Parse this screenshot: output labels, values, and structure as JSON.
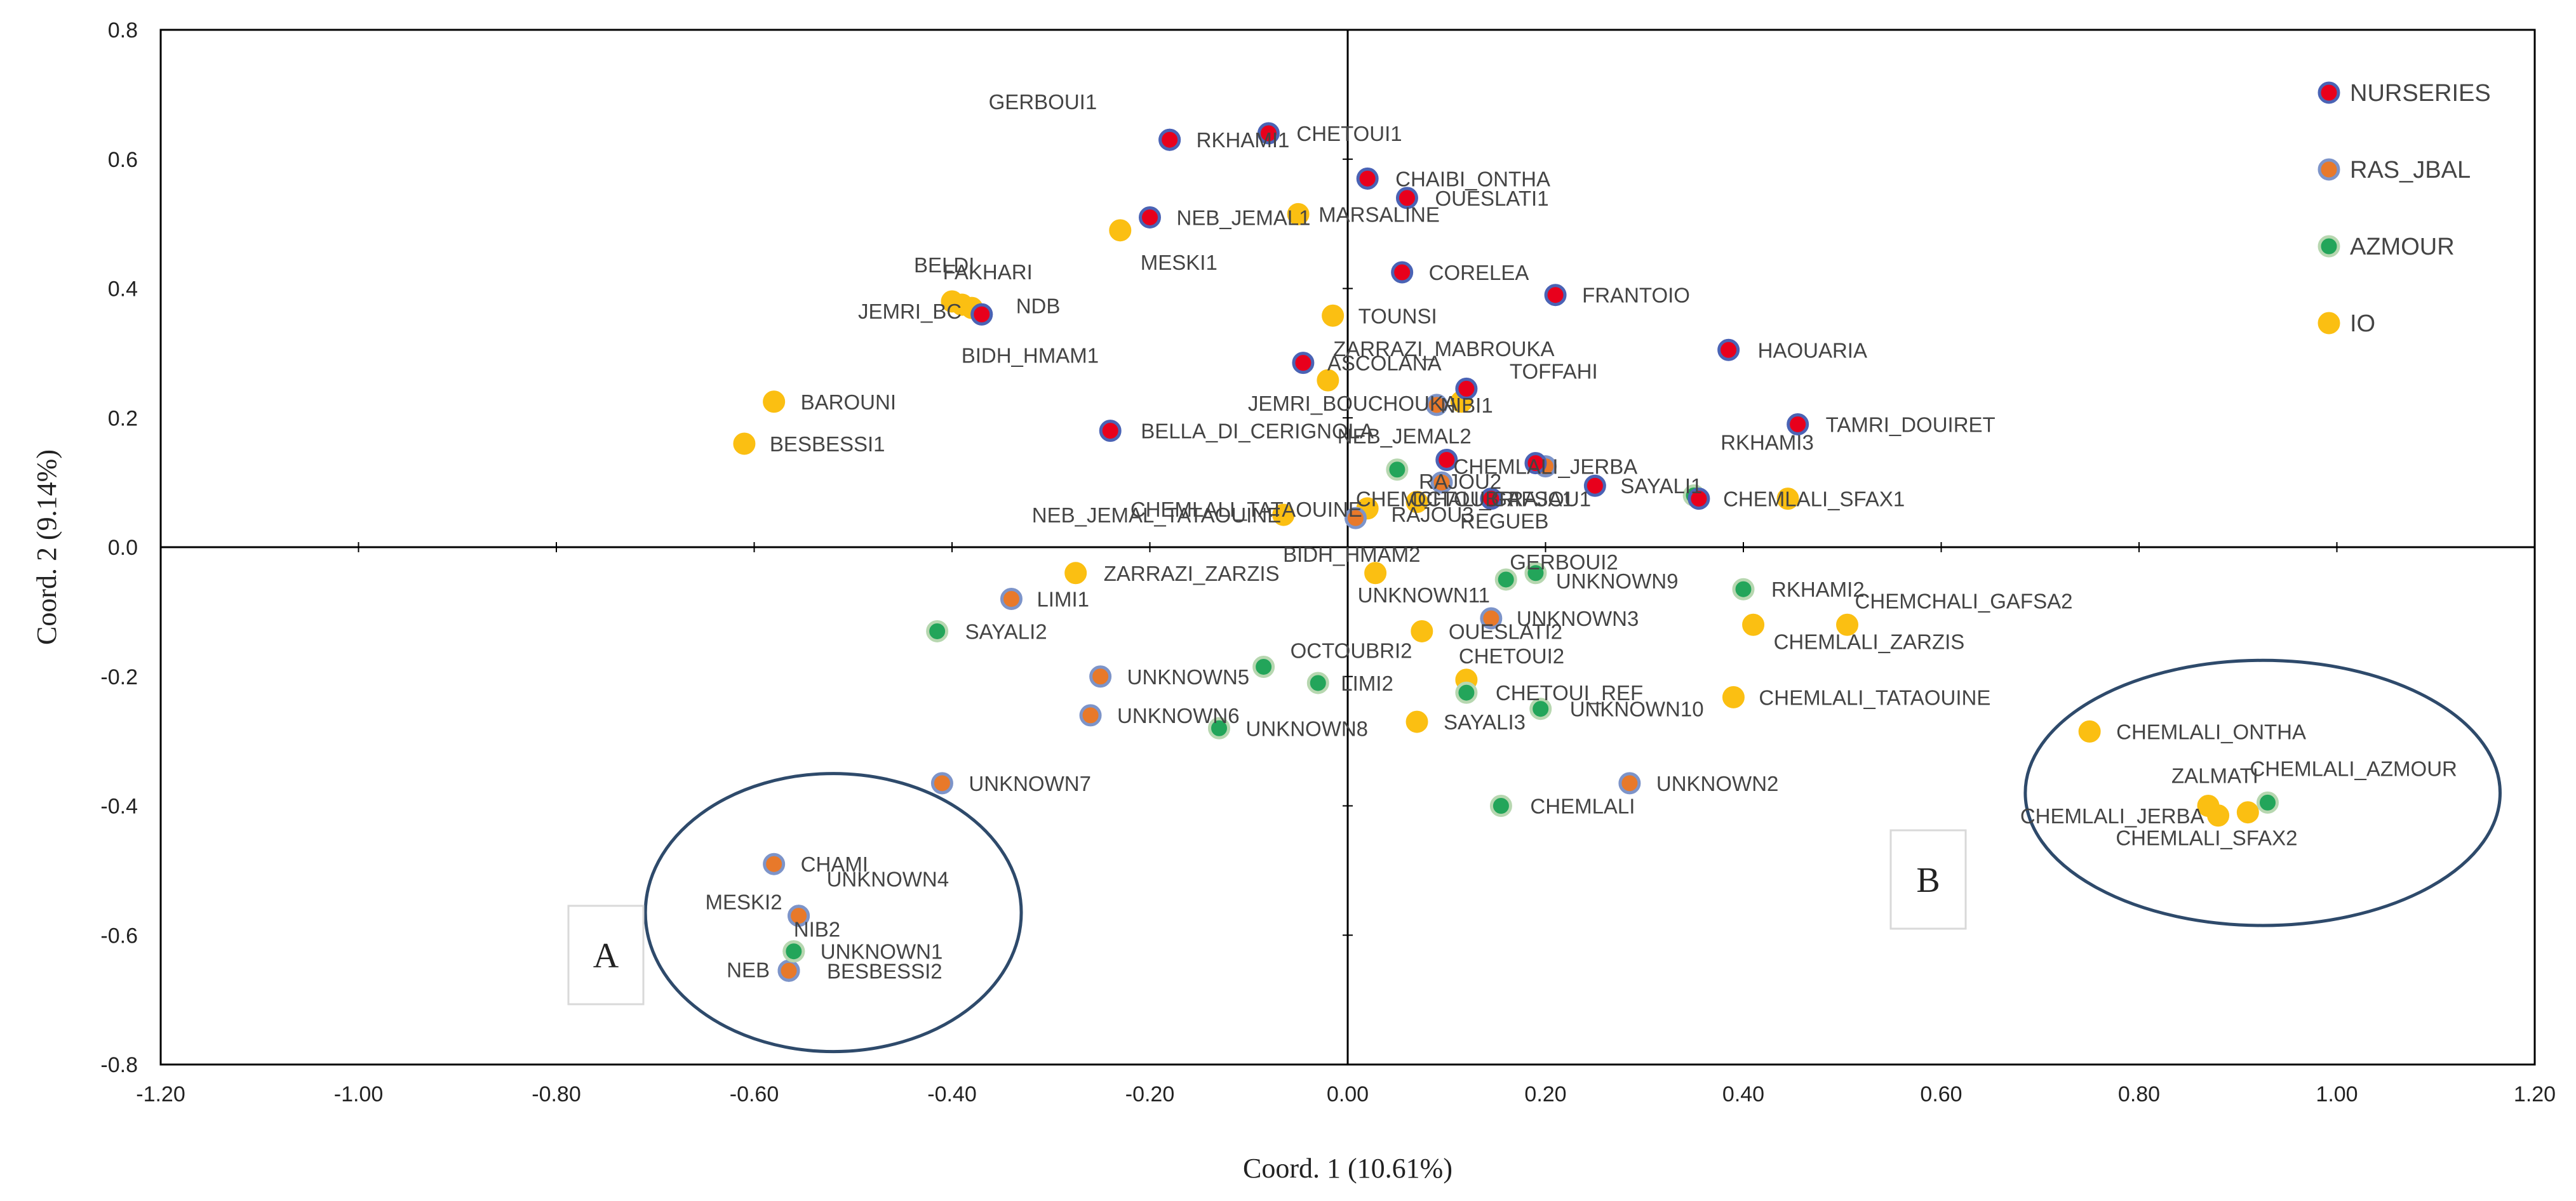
{
  "chart_data": {
    "type": "scatter",
    "xlabel": "Coord. 1 (10.61%)",
    "ylabel": "Coord. 2 (9.14%)",
    "xlim": [
      -1.2,
      1.2
    ],
    "ylim": [
      -0.8,
      0.8
    ],
    "xticks": [
      -1.2,
      -1.0,
      -0.8,
      -0.6,
      -0.4,
      -0.2,
      0.0,
      0.2,
      0.4,
      0.6,
      0.8,
      1.0,
      1.2
    ],
    "yticks": [
      -0.8,
      -0.6,
      -0.4,
      -0.2,
      0.0,
      0.2,
      0.4,
      0.6,
      0.8
    ],
    "xtick_labels": [
      "-1.20",
      "-1.00",
      "-0.80",
      "-0.60",
      "-0.40",
      "-0.20",
      "0.00",
      "0.20",
      "0.40",
      "0.60",
      "0.80",
      "1.00",
      "1.20"
    ],
    "ytick_labels": [
      "-0.8",
      "-0.6",
      "-0.4",
      "-0.2",
      "0.0",
      "0.2",
      "0.4",
      "0.6",
      "0.8"
    ],
    "legend": [
      {
        "name": "NURSERIES",
        "fill": "#e8001c",
        "ring": "#4a63b5"
      },
      {
        "name": "RAS_JBAL",
        "fill": "#e8792a",
        "ring": "#7d94c9"
      },
      {
        "name": "AZMOUR",
        "fill": "#23a55a",
        "ring": "#b7d7b0"
      },
      {
        "name": "IO",
        "fill": "#fbbf12",
        "ring": "#fbbf12"
      }
    ],
    "colors": {
      "NURSERIES": "#e8001c",
      "RAS_JBAL": "#e8792a",
      "AZMOUR": "#23a55a",
      "IO": "#fbbf12",
      "axis": "#000000",
      "ellipse": "#2e4a6b"
    },
    "series": [
      {
        "name": "NURSERIES",
        "points": [
          {
            "label": "GERBOUI1",
            "x": -0.18,
            "y": 0.63
          },
          {
            "label": "RKHAMI1",
            "x": -0.18,
            "y": 0.63
          },
          {
            "label": "CHETOUI1",
            "x": -0.08,
            "y": 0.64
          },
          {
            "label": "NEB_JEMAL1",
            "x": -0.2,
            "y": 0.51
          },
          {
            "label": "CHAIBI_ONTHA",
            "x": 0.02,
            "y": 0.57
          },
          {
            "label": "OUESLATI1",
            "x": 0.06,
            "y": 0.54
          },
          {
            "label": "CORELEA",
            "x": 0.055,
            "y": 0.425
          },
          {
            "label": "FRANTOIO",
            "x": 0.21,
            "y": 0.39
          },
          {
            "label": "NDB",
            "x": -0.37,
            "y": 0.36
          },
          {
            "label": "BIDH_HMAM1",
            "x": -0.37,
            "y": 0.36
          },
          {
            "label": "ASCOLANA",
            "x": -0.045,
            "y": 0.285
          },
          {
            "label": "HAOUARIA",
            "x": 0.385,
            "y": 0.305
          },
          {
            "label": "TOFFAHI",
            "x": 0.12,
            "y": 0.245
          },
          {
            "label": "BELLA_DI_CERIGNOLA",
            "x": -0.24,
            "y": 0.18
          },
          {
            "label": "TAMRI_DOUIRET",
            "x": 0.455,
            "y": 0.19
          },
          {
            "label": "NEB_JEMAL2",
            "x": 0.1,
            "y": 0.135
          },
          {
            "label": "RAJOU1",
            "x": 0.19,
            "y": 0.13
          },
          {
            "label": "SAYALI1",
            "x": 0.25,
            "y": 0.095
          },
          {
            "label": "OCTOUBRI",
            "x": 0.145,
            "y": 0.075
          },
          {
            "label": "CHEMCHALI_GAFSA1",
            "x": 0.355,
            "y": 0.075
          }
        ]
      },
      {
        "name": "RAS_JBAL",
        "points": [
          {
            "label": "NIBI1",
            "x": 0.09,
            "y": 0.22
          },
          {
            "label": "CHEMLALI_JERBA",
            "x": 0.2,
            "y": 0.125
          },
          {
            "label": "RAJOU2",
            "x": 0.095,
            "y": 0.1
          },
          {
            "label": "RAJOU3",
            "x": 0.008,
            "y": 0.045
          },
          {
            "label": "LIMI1",
            "x": -0.34,
            "y": -0.08
          },
          {
            "label": "UNKNOWN3",
            "x": 0.145,
            "y": -0.11
          },
          {
            "label": "UNKNOWN5",
            "x": -0.25,
            "y": -0.2
          },
          {
            "label": "UNKNOWN6",
            "x": -0.26,
            "y": -0.26
          },
          {
            "label": "UNKNOWN7",
            "x": -0.41,
            "y": -0.365
          },
          {
            "label": "UNKNOWN2",
            "x": 0.285,
            "y": -0.365
          },
          {
            "label": "CHAMI",
            "x": -0.58,
            "y": -0.49
          },
          {
            "label": "UNKNOWN4",
            "x": -0.555,
            "y": -0.57
          },
          {
            "label": "MESKI2",
            "x": -0.555,
            "y": -0.57
          },
          {
            "label": "NEB",
            "x": -0.565,
            "y": -0.655
          },
          {
            "label": "BESBESSI2",
            "x": -0.565,
            "y": -0.655
          }
        ]
      },
      {
        "name": "AZMOUR",
        "points": [
          {
            "label": "CHEMLALI_TATAOUINE",
            "x": 0.05,
            "y": 0.12
          },
          {
            "label": "RKHAMI3",
            "x": 0.35,
            "y": 0.08
          },
          {
            "label": "GERBOUI2",
            "x": 0.16,
            "y": -0.05
          },
          {
            "label": "UNKNOWN9",
            "x": 0.19,
            "y": -0.04
          },
          {
            "label": "RKHAMI2",
            "x": 0.4,
            "y": -0.065
          },
          {
            "label": "SAYALI2",
            "x": -0.415,
            "y": -0.13
          },
          {
            "label": "OCTOUBRI2",
            "x": -0.085,
            "y": -0.185
          },
          {
            "label": "LIMI2",
            "x": -0.03,
            "y": -0.21
          },
          {
            "label": "CHETOUI_REF",
            "x": 0.12,
            "y": -0.225
          },
          {
            "label": "UNKNOWN10",
            "x": 0.195,
            "y": -0.25
          },
          {
            "label": "UNKNOWN8",
            "x": -0.13,
            "y": -0.28
          },
          {
            "label": "CHEMLALI",
            "x": 0.155,
            "y": -0.4
          },
          {
            "label": "UNKNOWN1",
            "x": -0.56,
            "y": -0.625
          },
          {
            "label": "NIB2",
            "x": -0.56,
            "y": -0.625
          },
          {
            "label": "CHEMLALI_AZMOUR",
            "x": 0.93,
            "y": -0.395
          }
        ]
      },
      {
        "name": "IO",
        "points": [
          {
            "label": "MARSALINE",
            "x": -0.05,
            "y": 0.515
          },
          {
            "label": "MESKI1",
            "x": -0.23,
            "y": 0.49
          },
          {
            "label": "BELDI",
            "x": -0.4,
            "y": 0.38
          },
          {
            "label": "FAKHARI",
            "x": -0.39,
            "y": 0.375
          },
          {
            "label": "JEMRI_BC",
            "x": -0.38,
            "y": 0.37
          },
          {
            "label": "TOUNSI",
            "x": -0.015,
            "y": 0.358
          },
          {
            "label": "JEMRI_BOUCHOUKA",
            "x": -0.02,
            "y": 0.258
          },
          {
            "label": "ZARRAZI_MABROUKA",
            "x": 0.115,
            "y": 0.225
          },
          {
            "label": "BAROUNI",
            "x": -0.58,
            "y": 0.225
          },
          {
            "label": "BESBESSI1",
            "x": -0.61,
            "y": 0.16
          },
          {
            "label": "CHEMLALI_SFAX1",
            "x": 0.445,
            "y": 0.075
          },
          {
            "label": "REGUEB",
            "x": 0.07,
            "y": 0.07
          },
          {
            "label": "NEB_JEMAL_TATAOUINE",
            "x": -0.065,
            "y": 0.05
          },
          {
            "label": "BIDH_HMAM2",
            "x": 0.02,
            "y": 0.06
          },
          {
            "label": "ZARRAZI_ZARZIS",
            "x": -0.275,
            "y": -0.04
          },
          {
            "label": "UNKNOWN11",
            "x": 0.028,
            "y": -0.04
          },
          {
            "label": "OUESLATI2",
            "x": 0.075,
            "y": -0.13
          },
          {
            "label": "CHEMLALI_ZARZIS",
            "x": 0.41,
            "y": -0.12
          },
          {
            "label": "CHEMCHALI_GAFSA2",
            "x": 0.505,
            "y": -0.12
          },
          {
            "label": "CHETOUI2",
            "x": 0.12,
            "y": -0.205
          },
          {
            "label": "CHEMLALI_TATAOUINE",
            "x": 0.39,
            "y": -0.232
          },
          {
            "label": "SAYALI3",
            "x": 0.07,
            "y": -0.27
          },
          {
            "label": "CHEMLALI_ONTHA",
            "x": 0.75,
            "y": -0.285
          },
          {
            "label": "ZALMATI",
            "x": 0.87,
            "y": -0.4
          },
          {
            "label": "CHEMLALI_JERBA",
            "x": 0.88,
            "y": -0.415
          },
          {
            "label": "CHEMLALI_SFAX2",
            "x": 0.91,
            "y": -0.41
          }
        ]
      }
    ],
    "groups": [
      {
        "label": "A",
        "cx": -0.52,
        "cy": -0.565,
        "rx": 0.19,
        "ry": 0.215
      },
      {
        "label": "B",
        "cx": 0.925,
        "cy": -0.38,
        "rx": 0.24,
        "ry": 0.205
      }
    ]
  }
}
